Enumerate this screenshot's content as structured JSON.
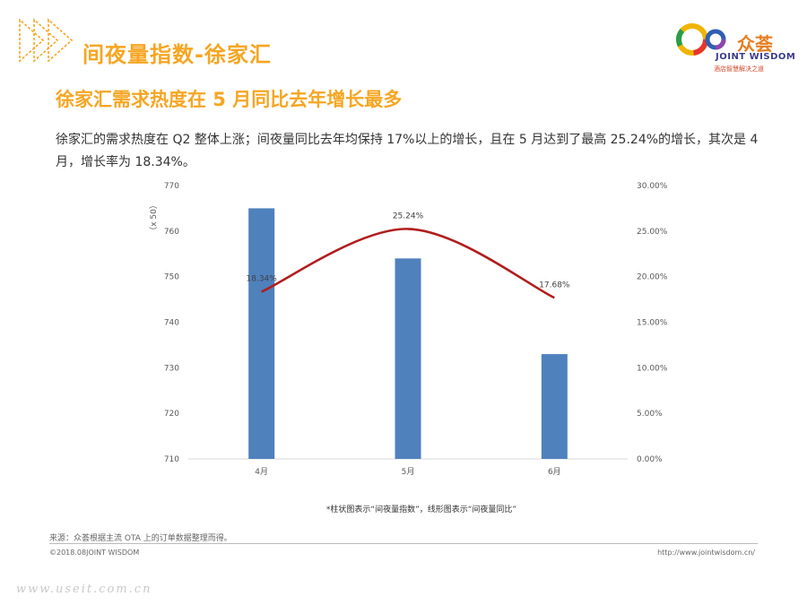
{
  "header": {
    "title": "间夜量指数-徐家汇",
    "brand_cn": "众荟",
    "brand_en": "JOINT WISDOM",
    "brand_tagline": "酒店智慧解决之道"
  },
  "subtitle": "徐家汇需求热度在 5 月同比去年增长最多",
  "description": "徐家汇的需求热度在 Q2 整体上涨；间夜量同比去年均保持 17%以上的增长，且在 5 月达到了最高 25.24%的增长，其次是 4 月，增长率为 18.34%。",
  "chart_note": "*柱状图表示“间夜量指数”，线形图表示“间夜量同比”",
  "footer": {
    "source": "来源：众荟根据主流 OTA 上的订单数据整理而得。",
    "copyright": "©2018.08JOINT WISDOM",
    "url": "http://www.jointwisdom.cn/"
  },
  "watermark": "www.useit.com.cn",
  "colors": {
    "accent": "#f5a623",
    "bar": "#4f81bd",
    "line": "#b01e1e"
  },
  "chart_data": {
    "type": "bar",
    "categories": [
      "4月",
      "5月",
      "6月"
    ],
    "series": [
      {
        "name": "间夜量指数",
        "type": "bar",
        "axis": "left",
        "values": [
          765,
          754,
          733
        ]
      },
      {
        "name": "间夜量同比",
        "type": "line",
        "axis": "right",
        "values": [
          18.34,
          25.24,
          17.68
        ],
        "labels": [
          "18.34%",
          "25.24%",
          "17.68%"
        ]
      }
    ],
    "left_axis": {
      "unit_label": "（x 50）",
      "ylim": [
        710,
        770
      ],
      "ticks": [
        "710",
        "720",
        "730",
        "740",
        "750",
        "760",
        "770"
      ]
    },
    "right_axis": {
      "ylim": [
        0,
        30
      ],
      "ticks": [
        "0.00%",
        "5.00%",
        "10.00%",
        "15.00%",
        "20.00%",
        "25.00%",
        "30.00%"
      ]
    }
  }
}
